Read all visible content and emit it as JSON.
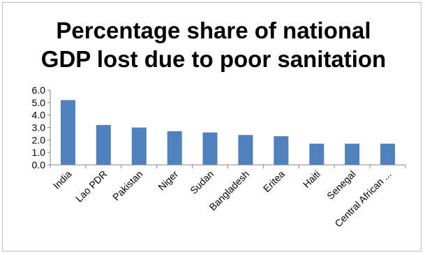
{
  "chart_data": {
    "type": "bar",
    "title_lines": [
      "Percentage share of national",
      "GDP lost due to poor sanitation"
    ],
    "xlabel": "",
    "ylabel": "",
    "categories": [
      "India",
      "Lao PDR",
      "Pakistan",
      "Niger",
      "Sudan",
      "Bangladesh",
      "Eritea",
      "Haiti",
      "Senegal",
      "Central African ..."
    ],
    "values": [
      5.2,
      3.2,
      3.0,
      2.7,
      2.6,
      2.4,
      2.3,
      1.7,
      1.7,
      1.7
    ],
    "ylim": [
      0,
      6
    ],
    "yticks": [
      "0.0",
      "1.0",
      "2.0",
      "3.0",
      "4.0",
      "5.0",
      "6.0"
    ],
    "grid": false,
    "legend": "none",
    "colors": {
      "bar": "#4f81bd",
      "axis": "#868686",
      "frame": "#bfbfbf"
    }
  }
}
